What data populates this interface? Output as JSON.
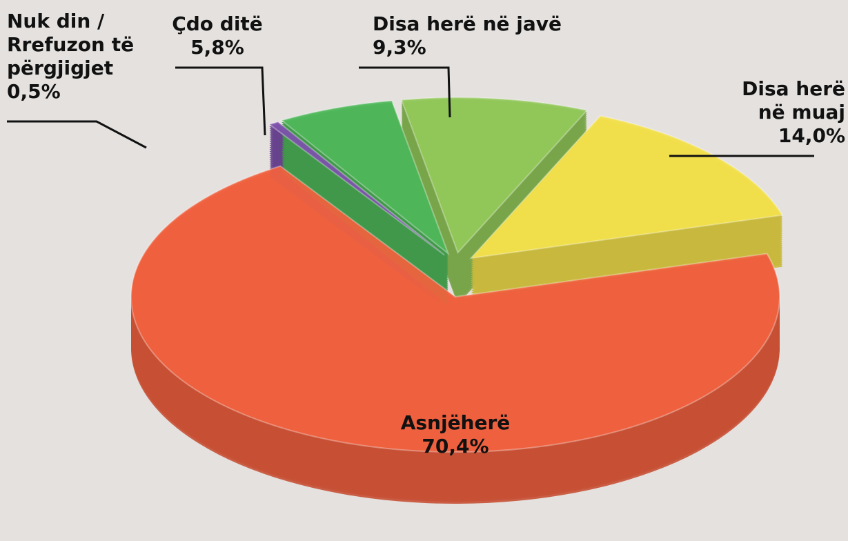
{
  "chart_data": {
    "type": "pie",
    "categories": [
      "Disa herë në javë",
      "Disa herë në muaj",
      "Asnjëherë",
      "Nuk din / Rrefuzon të përgjigjet",
      "Çdo ditë"
    ],
    "values": [
      9.3,
      14.0,
      70.4,
      0.5,
      5.8
    ],
    "value_labels": [
      "9,3%",
      "14,0%",
      "70,4%",
      "0,5%",
      "5,8%"
    ],
    "colors": [
      "#93c95a",
      "#f4e24c",
      "#f2623f",
      "#7d52ac",
      "#4fb95a"
    ]
  }
}
